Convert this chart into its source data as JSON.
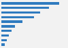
{
  "values": [
    3010,
    2470,
    2010,
    1690,
    1100,
    700,
    530,
    400,
    290,
    170
  ],
  "bar_color": "#2f7bbf",
  "background_color": "#f2f2f2",
  "plot_background": "#f2f2f2",
  "xlim": [
    0,
    3400
  ]
}
